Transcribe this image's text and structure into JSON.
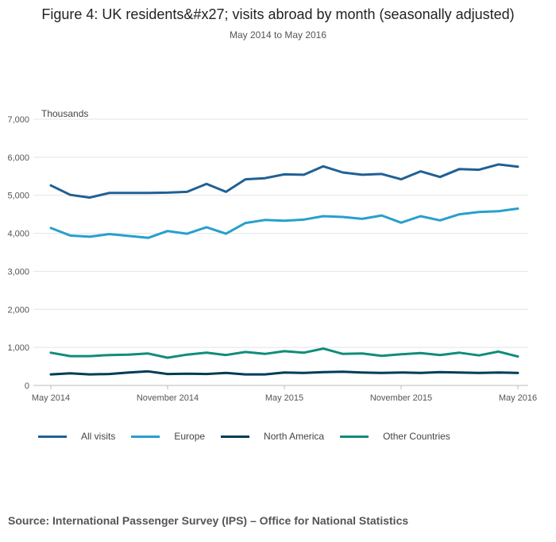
{
  "header": {
    "title": "Figure 4: UK residents&#x27; visits abroad by month (seasonally adjusted)",
    "subtitle": "May 2014 to May 2016"
  },
  "source": "Source: International Passenger Survey (IPS) – Office for National Statistics",
  "chart_data": {
    "type": "line",
    "title": "Figure 4: UK residents&#x27; visits abroad by month (seasonally adjusted)",
    "subtitle": "May 2014 to May 2016",
    "ylabel": "Thousands",
    "xlabel": "",
    "ylim": [
      0,
      7000
    ],
    "yticks": [
      0,
      1000,
      2000,
      3000,
      4000,
      5000,
      6000,
      7000
    ],
    "ytick_labels": [
      "0",
      "1,000",
      "2,000",
      "3,000",
      "4,000",
      "5,000",
      "6,000",
      "7,000"
    ],
    "xtick_labels": [
      {
        "index": 0,
        "label": "May 2014"
      },
      {
        "index": 6,
        "label": "November 2014"
      },
      {
        "index": 12,
        "label": "May 2015"
      },
      {
        "index": 18,
        "label": "November 2015"
      },
      {
        "index": 24,
        "label": "May 2016"
      }
    ],
    "x": [
      "2014-05",
      "2014-06",
      "2014-07",
      "2014-08",
      "2014-09",
      "2014-10",
      "2014-11",
      "2014-12",
      "2015-01",
      "2015-02",
      "2015-03",
      "2015-04",
      "2015-05",
      "2015-06",
      "2015-07",
      "2015-08",
      "2015-09",
      "2015-10",
      "2015-11",
      "2015-12",
      "2016-01",
      "2016-02",
      "2016-03",
      "2016-04",
      "2016-05"
    ],
    "grid": true,
    "legend_position": "bottom-left",
    "series": [
      {
        "name": "All visits",
        "color": "#206095",
        "values": [
          5260,
          5010,
          4940,
          5060,
          5060,
          5060,
          5070,
          5090,
          5300,
          5090,
          5420,
          5450,
          5550,
          5540,
          5760,
          5600,
          5540,
          5560,
          5420,
          5630,
          5480,
          5690,
          5670,
          5810,
          5750
        ]
      },
      {
        "name": "Europe",
        "color": "#27a0cc",
        "values": [
          4140,
          3940,
          3910,
          3980,
          3930,
          3880,
          4060,
          3990,
          4160,
          3990,
          4270,
          4350,
          4330,
          4360,
          4450,
          4430,
          4380,
          4470,
          4280,
          4450,
          4340,
          4500,
          4560,
          4580,
          4650
        ]
      },
      {
        "name": "North America",
        "color": "#003c57",
        "values": [
          290,
          320,
          290,
          300,
          340,
          370,
          300,
          310,
          300,
          330,
          290,
          290,
          340,
          330,
          350,
          360,
          340,
          330,
          340,
          330,
          350,
          340,
          330,
          340,
          330
        ]
      },
      {
        "name": "Other Countries",
        "color": "#118c7b",
        "values": [
          860,
          770,
          770,
          800,
          810,
          840,
          730,
          810,
          860,
          800,
          880,
          830,
          900,
          860,
          970,
          830,
          840,
          780,
          820,
          850,
          800,
          860,
          790,
          890,
          760
        ]
      }
    ]
  }
}
